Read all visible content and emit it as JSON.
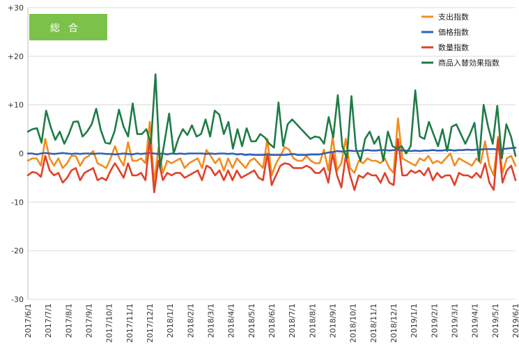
{
  "chart_data": {
    "type": "line",
    "title": "",
    "xlabel": "",
    "ylabel": "",
    "ylim": [
      -30,
      30
    ],
    "yticks": [
      "+30",
      "+20",
      "+10",
      "0",
      "-10",
      "-20",
      "-30"
    ],
    "ytick_values": [
      30,
      20,
      10,
      0,
      -10,
      -20,
      -30
    ],
    "xtick_labels": [
      "2017/6/1",
      "2017/7/1",
      "2017/8/1",
      "2017/9/1",
      "2017/10/1",
      "2017/11/1",
      "2017/12/1",
      "2018/1/1",
      "2018/2/1",
      "2018/3/1",
      "2018/4/1",
      "2018/5/1",
      "2018/6/1",
      "2018/7/1",
      "2018/8/1",
      "2018/9/1",
      "2018/10/1",
      "2018/11/1",
      "2018/12/1",
      "2019/1/1",
      "2019/2/1",
      "2019/3/1",
      "2019/4/1",
      "2019/5/1",
      "2019/6/1"
    ],
    "grid": "horizontal",
    "legend_position": "top-right",
    "badge": "総合",
    "series": [
      {
        "name": "支出指数",
        "color": "#F28C1C",
        "values": [
          -1.5,
          -1,
          -1,
          -2.5,
          3,
          -1,
          -2.5,
          -1,
          -3,
          -2,
          -0.5,
          -0.5,
          -2.5,
          -1,
          -0.5,
          0.5,
          -2,
          -2.5,
          -3,
          -1,
          1.5,
          -1,
          -2.5,
          2.3,
          -1.5,
          -1.5,
          -1,
          -2,
          6.5,
          -6,
          1.2,
          -4,
          -1.5,
          -2,
          -1.5,
          -1,
          -3,
          -2,
          -1.5,
          -1,
          -3,
          0.7,
          -0.5,
          -2,
          -1,
          -3.5,
          -1,
          -3,
          -1,
          -2,
          -3,
          -1.5,
          -1,
          -2,
          -3,
          3,
          -4.5,
          -2,
          -0.5,
          1.3,
          0.8,
          -1,
          -1.5,
          -1.5,
          -0.5,
          -1.5,
          -2,
          -2,
          0.8,
          -3.5,
          3.5,
          -3.5,
          -2,
          3,
          -3,
          -4,
          -1.5,
          -2,
          -1,
          -1.5,
          -1.5,
          -2,
          -1,
          -3,
          -4,
          7.2,
          -1,
          -1.5,
          -2,
          -2.5,
          -1,
          -1.5,
          -0.5,
          -2,
          -1.5,
          -2,
          -1,
          0,
          -2.5,
          -1,
          -1.5,
          -2,
          -2.5,
          -1,
          -2,
          2.5,
          -2.5,
          -4.5,
          3.5,
          -4,
          -1,
          -0.5,
          -2.5
        ]
      },
      {
        "name": "価格指数",
        "color": "#2F5FB3",
        "values": [
          0,
          0,
          -0.2,
          0,
          0.1,
          0,
          -0.1,
          0,
          0.1,
          0,
          -0.1,
          0,
          -0.1,
          0,
          0,
          -0.1,
          0,
          0,
          -0.1,
          -0.1,
          -0.2,
          -0.1,
          0,
          -0.1,
          -0.2,
          0,
          -0.1,
          0,
          0.1,
          0,
          -0.1,
          0,
          -0.2,
          0,
          -0.1,
          0,
          -0.1,
          0,
          0,
          0,
          0,
          -0.1,
          0,
          -0.1,
          0,
          0,
          -0.1,
          0,
          -0.2,
          -0.1,
          -0.3,
          -0.2,
          -0.3,
          -0.3,
          -0.3,
          -0.2,
          -0.3,
          -0.3,
          -0.3,
          -0.3,
          -0.2,
          -0.1,
          -0.3,
          -0.3,
          -0.3,
          -0.2,
          -0.2,
          -0.2,
          0,
          0.2,
          0.3,
          0.5,
          0.4,
          0.5,
          0.6,
          0.5,
          0.5,
          0.6,
          0.7,
          0.6,
          0.6,
          0.7,
          0.7,
          0.6,
          0.7,
          0.7,
          0.6,
          0.6,
          0.5,
          0.6,
          0.5,
          0.6,
          0.6,
          0.7,
          0.6,
          0.6,
          0.7,
          0.7,
          0.6,
          0.7,
          0.7,
          0.8,
          0.7,
          0.8,
          0.8,
          0.9,
          0.9,
          0.9,
          0.8,
          0.9,
          1,
          1.1,
          1.2
        ]
      },
      {
        "name": "数量指数",
        "color": "#E0402A",
        "values": [
          -4.5,
          -3.8,
          -4,
          -4.8,
          -0.5,
          -3.5,
          -4.5,
          -4,
          -6,
          -5,
          -3.5,
          -3,
          -5.5,
          -4,
          -3.5,
          -3,
          -5.5,
          -5,
          -5.5,
          -3.5,
          -2,
          -3.5,
          -5,
          -2,
          -4.5,
          -4.5,
          -4,
          -5.5,
          3,
          -8,
          -1.5,
          -5.5,
          -4,
          -4.5,
          -4,
          -4,
          -5,
          -4.5,
          -4,
          -3.5,
          -5.5,
          -2.5,
          -3,
          -4.5,
          -3.5,
          -5.5,
          -3.5,
          -5.5,
          -3.5,
          -5,
          -4.5,
          -4,
          -3.5,
          -5,
          -5.5,
          0,
          -6.5,
          -4.5,
          -2.5,
          -2,
          -2.2,
          -3,
          -3,
          -3,
          -2.5,
          -3,
          -4,
          -4,
          -3,
          -6,
          0,
          -4.5,
          -7,
          -0.5,
          -4.5,
          -7.5,
          -4.5,
          -5,
          -4,
          -4.5,
          -4.5,
          -6,
          -4,
          -6,
          -6.5,
          3,
          -4.5,
          -4.5,
          -3.5,
          -4,
          -3.5,
          -4.5,
          -3,
          -5.5,
          -4,
          -5,
          -4.5,
          -4.5,
          -6.5,
          -4,
          -4.5,
          -4.5,
          -5,
          -4,
          -5,
          -2,
          -6,
          -7.5,
          3,
          -6,
          -3.5,
          -2.5,
          -5.5
        ]
      },
      {
        "name": "商品入替効果指数",
        "color": "#1E7B47",
        "values": [
          4.5,
          5,
          5.2,
          2.2,
          8.8,
          5.5,
          2.8,
          4.5,
          2,
          4,
          6.5,
          6.6,
          3.5,
          4.5,
          6,
          9.2,
          4.8,
          2.2,
          2,
          4.5,
          9,
          5.5,
          3.5,
          10.3,
          4,
          4,
          5,
          2,
          16.3,
          -3,
          2.5,
          8.2,
          0,
          3,
          5,
          3.8,
          5.8,
          3.5,
          4,
          7,
          3.5,
          8.8,
          8,
          4,
          6.5,
          1,
          5,
          1.5,
          5.2,
          2.5,
          2.5,
          4,
          3.3,
          2,
          1.2,
          10.5,
          1.5,
          6,
          7,
          6,
          5,
          4,
          3,
          3.5,
          3.3,
          2,
          7.5,
          3.3,
          12,
          1.5,
          -1,
          11.8,
          1,
          -1.5,
          3,
          4.5,
          2,
          3.5,
          -1.5,
          4.5,
          1.5,
          1,
          1.5,
          0,
          1.5,
          13,
          3.5,
          3,
          6.5,
          4,
          1.5,
          5,
          0.5,
          5.5,
          6,
          4,
          2,
          4,
          6.3,
          -1.5,
          10,
          5.5,
          2,
          9.8,
          -1,
          6,
          3.5,
          -0.5
        ]
      }
    ]
  }
}
